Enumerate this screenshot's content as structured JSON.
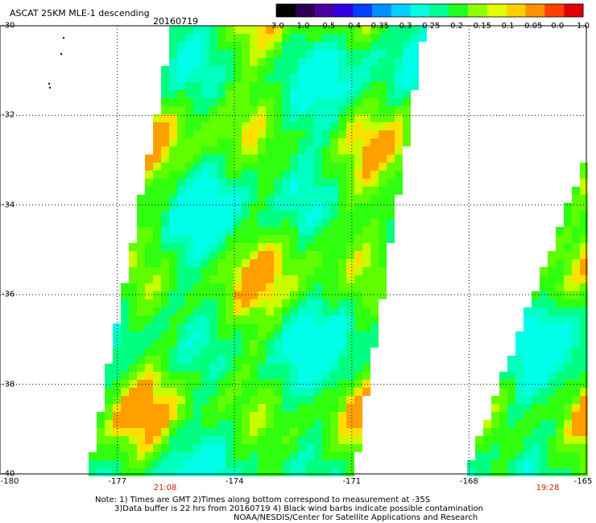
{
  "title": "ASCAT 25KM MLE-1 descending",
  "date": "20160719",
  "colorbar": {
    "labels": [
      "-3.0",
      "-1.0",
      "-0.5",
      "-0.4",
      "-0.35",
      "-0.3",
      "-0.25",
      "-0.2",
      "-0.15",
      "-0.1",
      "-0.05",
      "0.0",
      "1.0"
    ],
    "colors": [
      "#000000",
      "#2a0050",
      "#4a00a0",
      "#3000e0",
      "#0040ff",
      "#0090ff",
      "#00d0ff",
      "#00ffe0",
      "#00ff90",
      "#20ff20",
      "#90ff00",
      "#e0ff00",
      "#ffd000",
      "#ff9000",
      "#ff4000",
      "#e00000"
    ]
  },
  "axes": {
    "lat_labels": [
      "-30",
      "-32",
      "-34",
      "-36",
      "-38",
      "-40"
    ],
    "lon_labels": [
      "-180",
      "-177",
      "-174",
      "-171",
      "-168",
      "-165"
    ]
  },
  "pass_times": [
    "21:08",
    "19:28"
  ],
  "notes": [
    "Note: 1) Times are GMT 2)Times along bottom correspond to measurement at -35S",
    "3)Data buffer is 22 hrs from 20160719 4) Black wind barbs indicate possible contamination",
    "NOAA/NESDIS/Center for Satellite Applications and Research"
  ]
}
